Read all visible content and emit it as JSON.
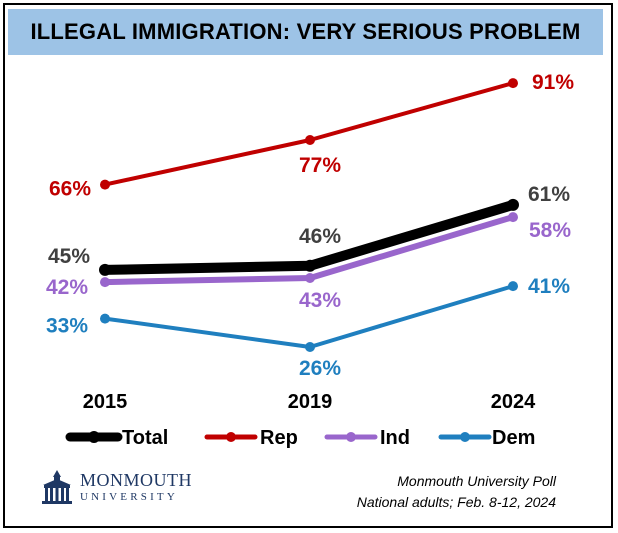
{
  "chart_data": {
    "type": "line",
    "title": "ILLEGAL IMMIGRATION: VERY SERIOUS PROBLEM",
    "categories": [
      "2015",
      "2019",
      "2024"
    ],
    "ylim": [
      20,
      95
    ],
    "legend_position": "bottom",
    "series": [
      {
        "name": "Total",
        "values": [
          45,
          46,
          61
        ],
        "labels": [
          "45%",
          "46%",
          "61%"
        ],
        "color": "#000000"
      },
      {
        "name": "Rep",
        "values": [
          66,
          77,
          91
        ],
        "labels": [
          "66%",
          "77%",
          "91%"
        ],
        "color": "#c00000"
      },
      {
        "name": "Ind",
        "values": [
          42,
          43,
          58
        ],
        "labels": [
          "42%",
          "43%",
          "58%"
        ],
        "color": "#9966cc"
      },
      {
        "name": "Dem",
        "values": [
          33,
          26,
          41
        ],
        "labels": [
          "33%",
          "26%",
          "41%"
        ],
        "color": "#1f7fbf"
      }
    ]
  },
  "source": {
    "line1": "Monmouth University Poll",
    "line2": "National adults; Feb. 8-12, 2024"
  },
  "logo": {
    "line1": "MONMOUTH",
    "line2": "UNIVERSITY",
    "icon": "university-building-icon"
  }
}
